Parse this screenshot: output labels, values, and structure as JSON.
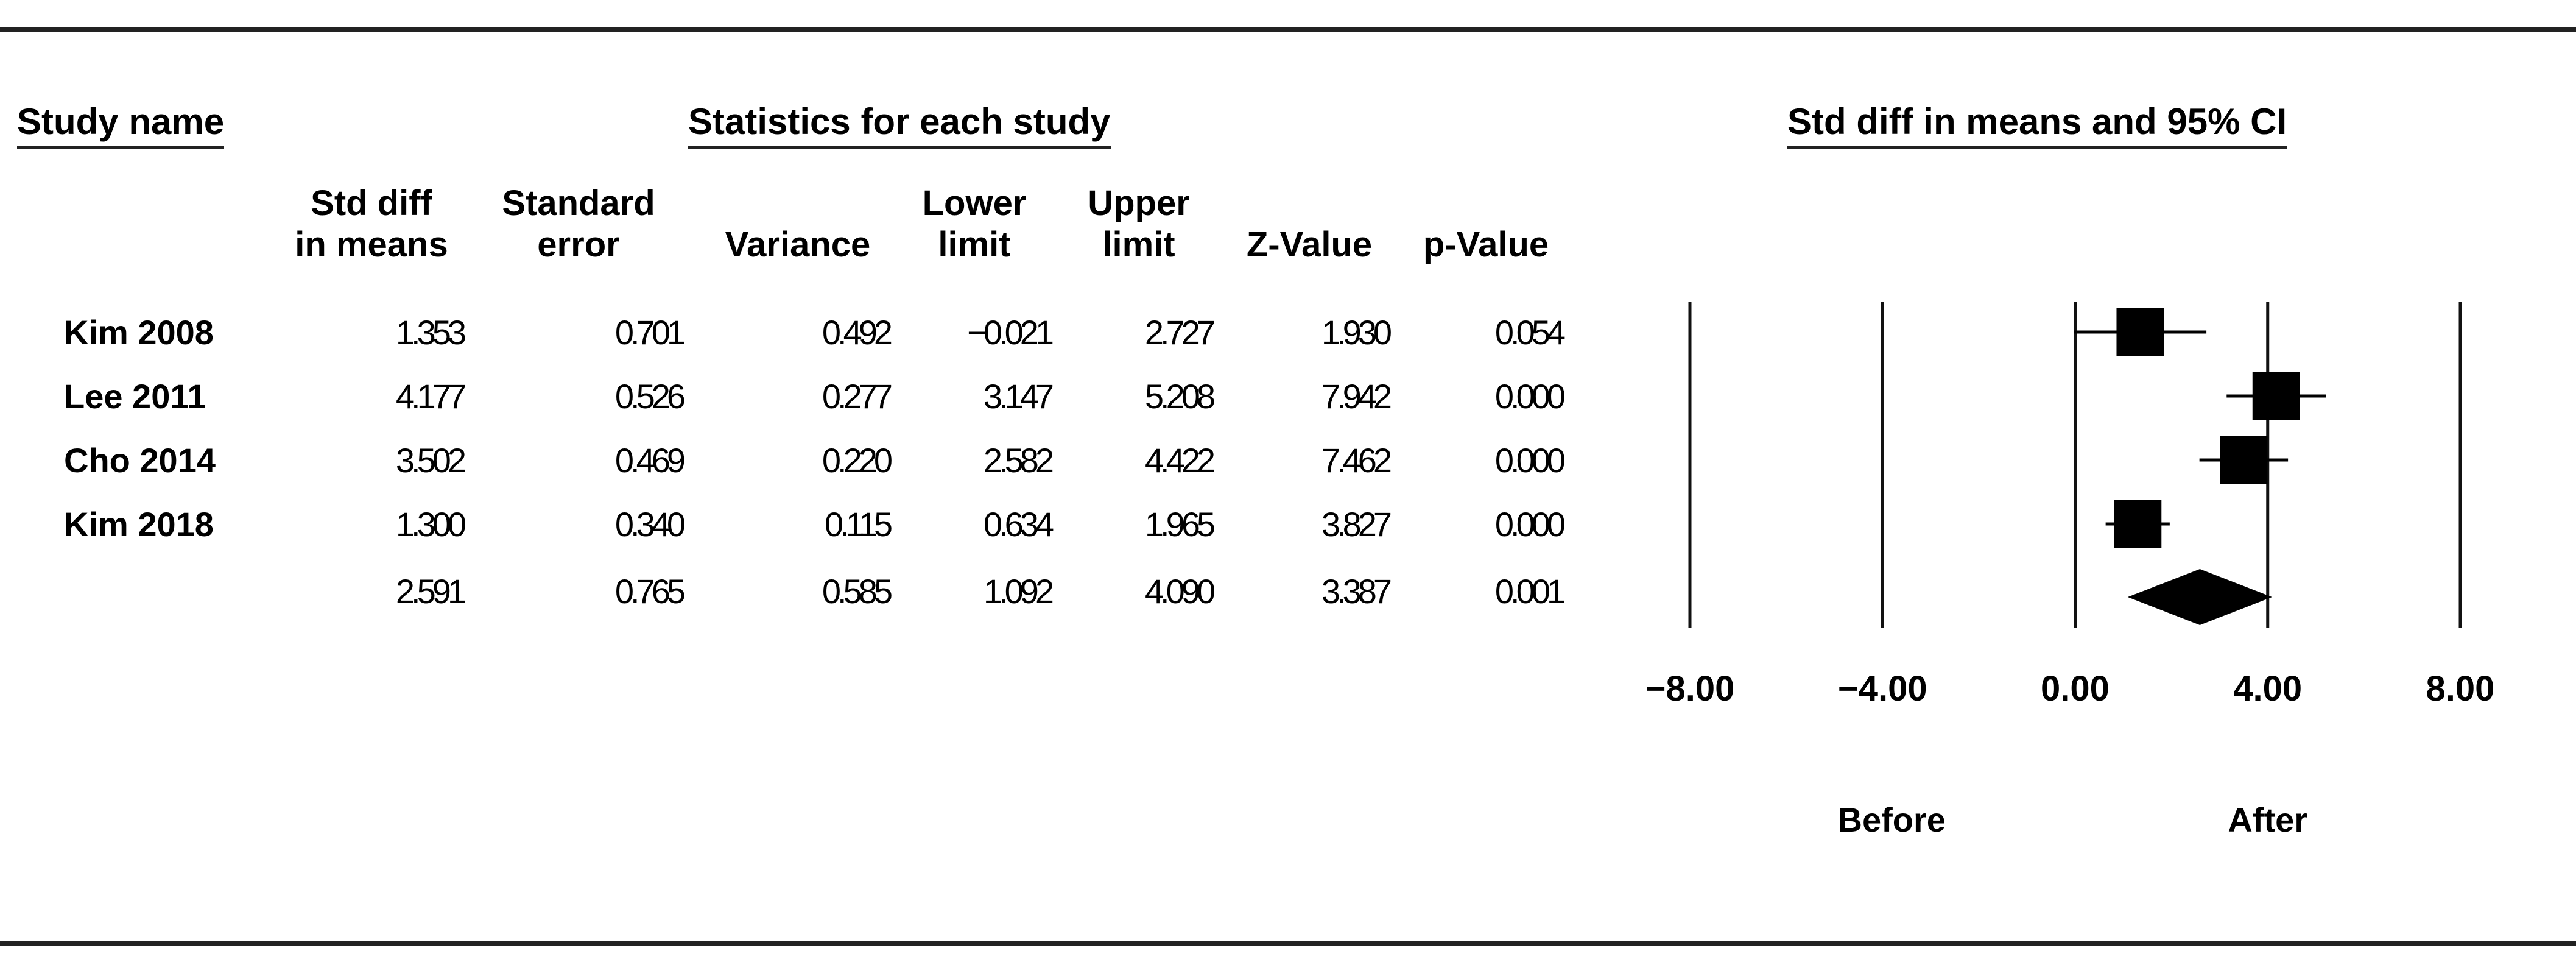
{
  "headers": {
    "study_name": "Study name",
    "statistics": "Statistics for each study",
    "forest": "Std diff in means and 95% CI"
  },
  "columns": [
    {
      "line1": "Std diff",
      "line2": "in means"
    },
    {
      "line1": "Standard",
      "line2": "error"
    },
    {
      "line1": "",
      "line2": "Variance"
    },
    {
      "line1": "Lower",
      "line2": "limit"
    },
    {
      "line1": "Upper",
      "line2": "limit"
    },
    {
      "line1": "",
      "line2": "Z-Value"
    },
    {
      "line1": "",
      "line2": "p-Value"
    }
  ],
  "rows": [
    {
      "study": "Kim 2008",
      "cells": [
        "1.353",
        "0.701",
        "0.492",
        "−0.021",
        "2.727",
        "1.930",
        "0.054"
      ]
    },
    {
      "study": "Lee 2011",
      "cells": [
        "4.177",
        "0.526",
        "0.277",
        "3.147",
        "5.208",
        "7.942",
        "0.000"
      ]
    },
    {
      "study": "Cho 2014",
      "cells": [
        "3.502",
        "0.469",
        "0.220",
        "2.582",
        "4.422",
        "7.462",
        "0.000"
      ]
    },
    {
      "study": "Kim 2018",
      "cells": [
        "1.300",
        "0.340",
        "0.115",
        "0.634",
        "1.965",
        "3.827",
        "0.000"
      ]
    },
    {
      "study": "",
      "cells": [
        "2.591",
        "0.765",
        "0.585",
        "1.092",
        "4.090",
        "3.387",
        "0.001"
      ]
    }
  ],
  "chart_data": {
    "type": "forest",
    "xlim": [
      -8,
      8
    ],
    "ticks": [
      -8,
      -4,
      0,
      4,
      8
    ],
    "tick_labels": [
      "−8.00",
      "−4.00",
      "0.00",
      "4.00",
      "8.00"
    ],
    "left_label": "Before",
    "right_label": "After",
    "studies": [
      {
        "name": "Kim 2008",
        "estimate": 1.353,
        "lower": -0.021,
        "upper": 2.727,
        "weight": 0.492
      },
      {
        "name": "Lee 2011",
        "estimate": 4.177,
        "lower": 3.147,
        "upper": 5.208,
        "weight": 0.277
      },
      {
        "name": "Cho 2014",
        "estimate": 3.502,
        "lower": 2.582,
        "upper": 4.422,
        "weight": 0.22
      },
      {
        "name": "Kim 2018",
        "estimate": 1.3,
        "lower": 0.634,
        "upper": 1.965,
        "weight": 0.115
      }
    ],
    "summary": {
      "estimate": 2.591,
      "lower": 1.092,
      "upper": 4.09
    }
  }
}
